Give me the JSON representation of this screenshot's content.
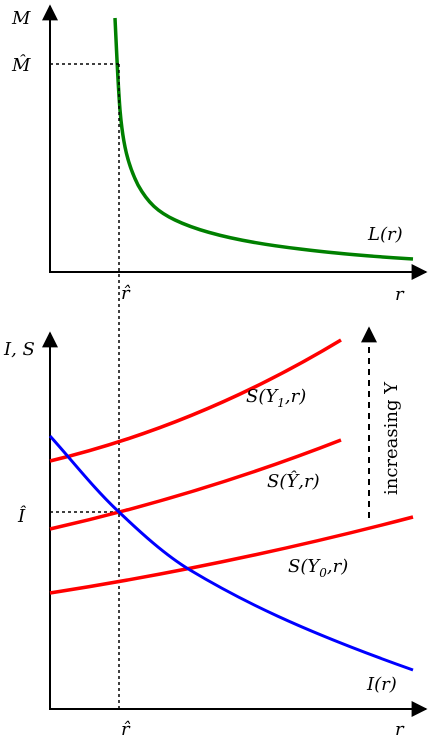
{
  "top_panel": {
    "y_axis_label": "M",
    "m_hat_label": "M̂",
    "x_axis_label": "r",
    "r_hat_label": "r̂",
    "curve_label": "L(r)",
    "curve_color": "#008000"
  },
  "bottom_panel": {
    "y_axis_label": "I, S",
    "i_hat_label": "Î",
    "x_axis_label": "r",
    "r_hat_label": "r̂",
    "s_y1": {
      "func": "S(Y",
      "sub": "1",
      "tail": ",r)",
      "color": "#ff0000"
    },
    "s_yhat": {
      "text": "S(Ŷ,r)",
      "color": "#ff0000"
    },
    "s_y0": {
      "func": "S(Y",
      "sub": "0",
      "tail": ",r)",
      "color": "#ff0000"
    },
    "investment_label": "I(r)",
    "investment_color": "#0000ff",
    "arrow_label": "increasing Y"
  }
}
